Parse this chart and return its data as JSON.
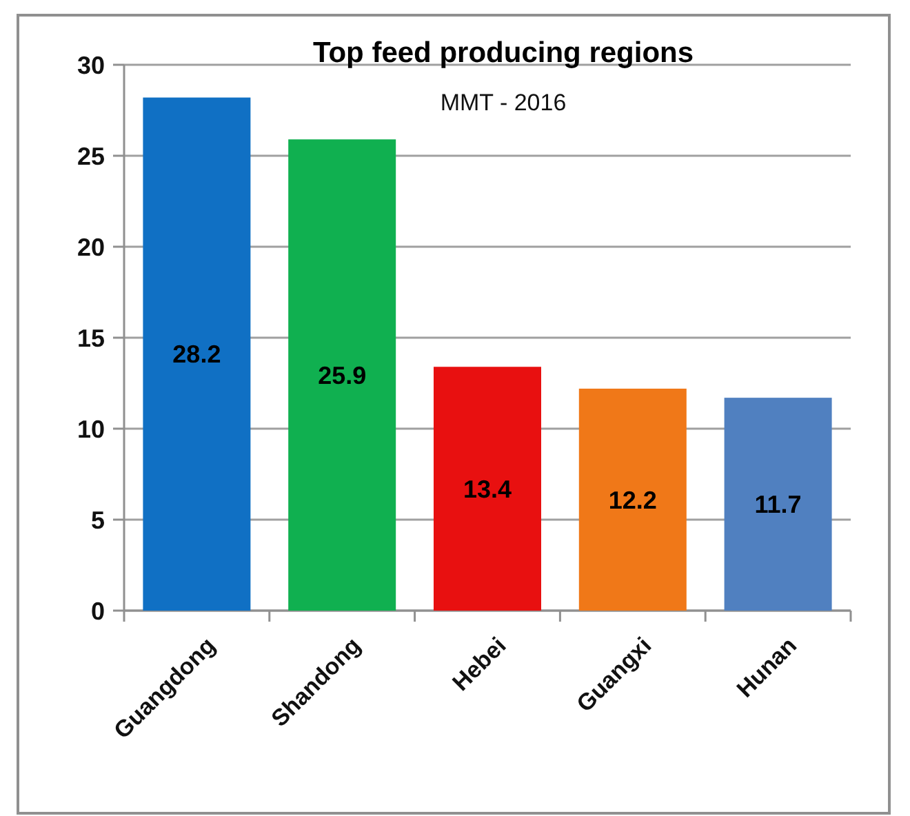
{
  "chart_data": {
    "type": "bar",
    "title": "Top feed producing regions",
    "subtitle": "MMT - 2016",
    "categories": [
      "Guangdong",
      "Shandong",
      "Hebei",
      "Guangxi",
      "Hunan"
    ],
    "values": [
      28.2,
      25.9,
      13.4,
      12.2,
      11.7
    ],
    "colors": [
      "#1070c4",
      "#10b050",
      "#e81010",
      "#f07818",
      "#5080c0"
    ],
    "ylim": [
      0,
      30
    ],
    "yticks": [
      0,
      5,
      10,
      15,
      20,
      25,
      30
    ],
    "grid": "y",
    "data_labels": true
  }
}
